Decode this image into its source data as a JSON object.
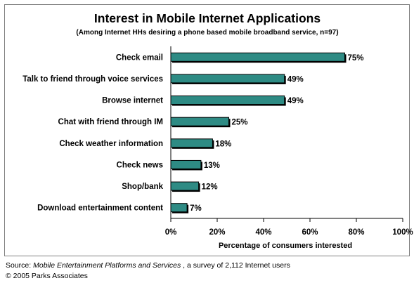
{
  "chart_data": {
    "type": "bar",
    "orientation": "horizontal",
    "title": "Interest in Mobile Internet Applications",
    "subtitle": "(Among Internet HHs desiring a phone based mobile broadband service, n=97)",
    "categories": [
      "Check email",
      "Talk to friend through voice services",
      "Browse internet",
      "Chat with friend through IM",
      "Check weather information",
      "Check news",
      "Shop/bank",
      "Download entertainment content"
    ],
    "values": [
      75,
      49,
      49,
      25,
      18,
      13,
      12,
      7
    ],
    "value_labels": [
      "75%",
      "49%",
      "49%",
      "25%",
      "18%",
      "13%",
      "12%",
      "7%"
    ],
    "xlabel": "Percentage of consumers interested",
    "ylabel": "",
    "xlim": [
      0,
      100
    ],
    "x_ticks": [
      0,
      20,
      40,
      60,
      80,
      100
    ],
    "x_tick_labels": [
      "0%",
      "20%",
      "40%",
      "60%",
      "80%",
      "100%"
    ],
    "grid": false,
    "legend": "none",
    "colors": {
      "bar_fill": "#2e8b84",
      "bar_stroke": "#000000",
      "bar_shadow": "#000000",
      "axis": "#000000",
      "frame": "#7f7f7f",
      "text": "#000000"
    }
  },
  "footer": {
    "source_prefix": "Source: ",
    "source_title": "Mobile Entertainment Platforms and Services",
    "source_suffix": " , a survey of 2,112 Internet users",
    "copyright": "© 2005 Parks Associates"
  }
}
